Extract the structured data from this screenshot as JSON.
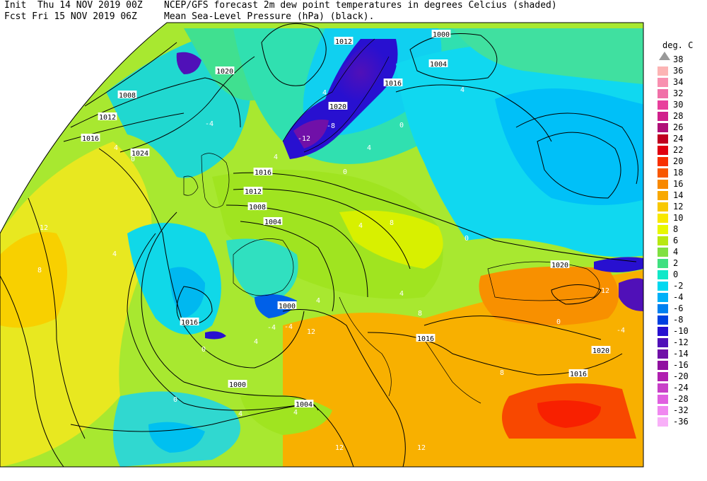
{
  "header": {
    "line1_left": "Init  Thu 14 NOV 2019 00Z",
    "line1_right": "NCEP/GFS forecast 2m dew point temperatures in degrees Celcius (shaded)",
    "line2_left": "Fcst Fri 15 NOV 2019 06Z",
    "line2_right": "Mean Sea-Level Pressure (hPa) (black)."
  },
  "legend": {
    "title": "deg. C",
    "arrow_label": "38",
    "items": [
      {
        "label": "36",
        "color": "#fcb4b4"
      },
      {
        "label": "34",
        "color": "#f890b0"
      },
      {
        "label": "32",
        "color": "#f070a8"
      },
      {
        "label": "30",
        "color": "#e8409c"
      },
      {
        "label": "28",
        "color": "#d0208c"
      },
      {
        "label": "26",
        "color": "#b01078"
      },
      {
        "label": "24",
        "color": "#c00020"
      },
      {
        "label": "22",
        "color": "#e00010"
      },
      {
        "label": "20",
        "color": "#f83000"
      },
      {
        "label": "18",
        "color": "#f85800"
      },
      {
        "label": "16",
        "color": "#f88800"
      },
      {
        "label": "14",
        "color": "#f8a800"
      },
      {
        "label": "12",
        "color": "#f8c800"
      },
      {
        "label": "10",
        "color": "#f8e800"
      },
      {
        "label": "8",
        "color": "#e8f800"
      },
      {
        "label": "6",
        "color": "#b8e810"
      },
      {
        "label": "4",
        "color": "#80e040"
      },
      {
        "label": "2",
        "color": "#40e080"
      },
      {
        "label": "0",
        "color": "#10e8c8"
      },
      {
        "label": "-2",
        "color": "#00d8f0"
      },
      {
        "label": "-4",
        "color": "#00b0f8"
      },
      {
        "label": "-6",
        "color": "#0080f0"
      },
      {
        "label": "-8",
        "color": "#0040e0"
      },
      {
        "label": "-10",
        "color": "#2810d0"
      },
      {
        "label": "-12",
        "color": "#5010b8"
      },
      {
        "label": "-14",
        "color": "#7010a8"
      },
      {
        "label": "-16",
        "color": "#9010a0"
      },
      {
        "label": "-20",
        "color": "#b020b0"
      },
      {
        "label": "-24",
        "color": "#c840c8"
      },
      {
        "label": "-28",
        "color": "#e060e0"
      },
      {
        "label": "-32",
        "color": "#f088f0"
      },
      {
        "label": "-36",
        "color": "#f8b0f8"
      }
    ]
  },
  "isobar_labels": [
    "1012",
    "1000",
    "1004",
    "1020",
    "1016",
    "1008",
    "1012",
    "1016",
    "1020",
    "1024",
    "1016",
    "1012",
    "1008",
    "1004",
    "1000",
    "1020",
    "1016",
    "1000",
    "1004",
    "1016",
    "1020",
    "1016",
    "1020"
  ],
  "temp_labels": [
    "0",
    "4",
    "-4",
    "4",
    "0",
    "4",
    "-12",
    "-8",
    "4",
    "0",
    "4",
    "12",
    "8",
    "4",
    "-4",
    "4",
    "8",
    "4",
    "0",
    "-4",
    "0",
    "8",
    "4",
    "12",
    "12",
    "12",
    "0",
    "4",
    "4",
    "0",
    "8",
    "4",
    "-4",
    "12"
  ]
}
